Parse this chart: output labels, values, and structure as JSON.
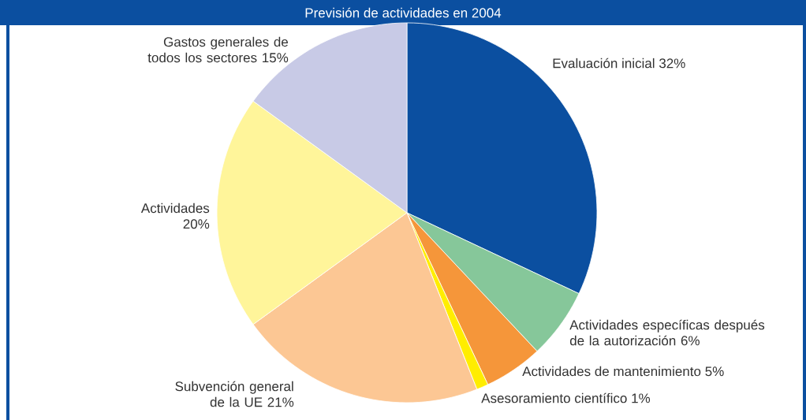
{
  "chart_data": {
    "type": "pie",
    "title": "Previsión de actividades en 2004",
    "categories": [
      "Evaluación inicial",
      "Actividades específicas después de la autorización",
      "Actividades de mantenimiento",
      "Asesoramiento científico",
      "Subvención general de la UE",
      "Actividades",
      "Gastos generales de todos los sectores"
    ],
    "values": [
      32,
      6,
      5,
      1,
      21,
      20,
      15
    ],
    "value_labels": [
      "32%",
      "6%",
      "5%",
      "1%",
      "21%",
      "20%",
      "15%"
    ],
    "colors": [
      "#0b4fa0",
      "#86c79a",
      "#f5963a",
      "#ffed00",
      "#fcc794",
      "#fff59a",
      "#c8cae6"
    ]
  }
}
